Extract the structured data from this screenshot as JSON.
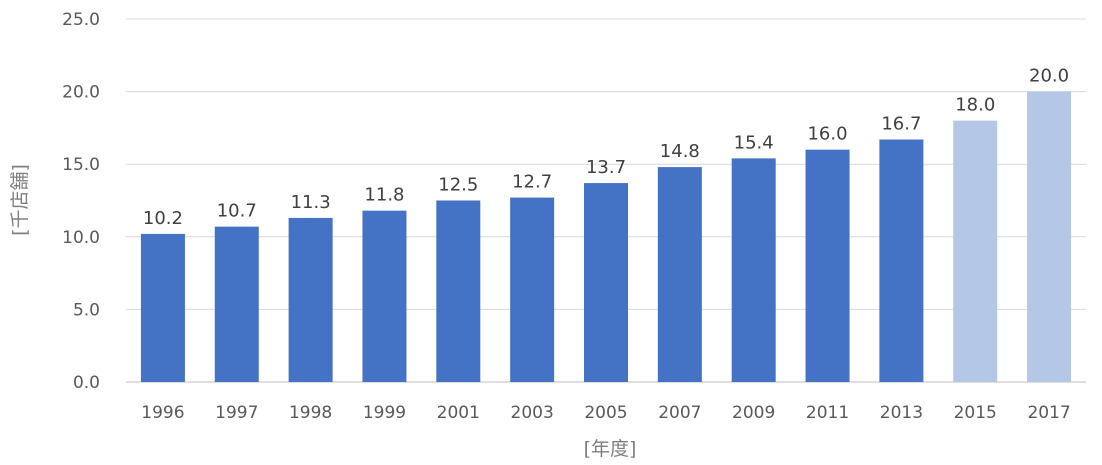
{
  "chart_data": {
    "type": "bar",
    "title": "",
    "xlabel": "[年度]",
    "ylabel": "[千店舗]",
    "ylim": [
      0,
      25
    ],
    "yticks": [
      "0.0",
      "5.0",
      "10.0",
      "15.0",
      "20.0",
      "25.0"
    ],
    "ytick_values": [
      0,
      5,
      10,
      15,
      20,
      25
    ],
    "grid": true,
    "legend": "none",
    "categories": [
      "1996",
      "1997",
      "1998",
      "1999",
      "2001",
      "2003",
      "2005",
      "2007",
      "2009",
      "2011",
      "2013",
      "2015",
      "2017"
    ],
    "values": [
      10.2,
      10.7,
      11.3,
      11.8,
      12.5,
      12.7,
      13.7,
      14.8,
      15.4,
      16.0,
      16.7,
      18.0,
      20.0
    ],
    "value_labels": [
      "10.2",
      "10.7",
      "11.3",
      "11.8",
      "12.5",
      "12.7",
      "13.7",
      "14.8",
      "15.4",
      "16.0",
      "16.7",
      "18.0",
      "20.0"
    ],
    "highlight": [
      false,
      false,
      false,
      false,
      false,
      false,
      false,
      false,
      false,
      false,
      false,
      true,
      true
    ],
    "colors": {
      "bar": "#4472c4",
      "bar_highlight": "#b4c7e7",
      "grid": "#d9d9d9"
    }
  }
}
